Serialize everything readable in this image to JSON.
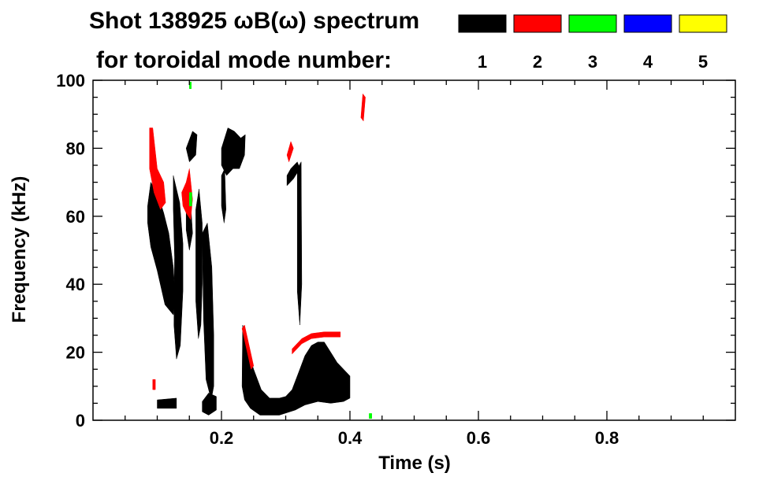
{
  "chart_data": {
    "type": "heatmap",
    "title": "Shot 138925 ωB(ω) spectrum",
    "subtitle": "for toroidal mode number:",
    "xlabel": "Time (s)",
    "ylabel": "Frequency (kHz)",
    "xlim": [
      0.0,
      1.0
    ],
    "ylim": [
      0,
      100
    ],
    "xticks": [
      {
        "value": 0.2,
        "label": "0.2"
      },
      {
        "value": 0.4,
        "label": "0.4"
      },
      {
        "value": 0.6,
        "label": "0.6"
      },
      {
        "value": 0.8,
        "label": "0.8"
      }
    ],
    "yticks": [
      {
        "value": 0,
        "label": "0"
      },
      {
        "value": 20,
        "label": "20"
      },
      {
        "value": 40,
        "label": "40"
      },
      {
        "value": 60,
        "label": "60"
      },
      {
        "value": 80,
        "label": "80"
      },
      {
        "value": 100,
        "label": "100"
      }
    ],
    "legend": [
      {
        "label": "1",
        "color": "#000000"
      },
      {
        "label": "2",
        "color": "#ff0000"
      },
      {
        "label": "3",
        "color": "#00ff00"
      },
      {
        "label": "4",
        "color": "#0000ff"
      },
      {
        "label": "5",
        "color": "#ffff00"
      }
    ],
    "regions": [
      {
        "mode": 1,
        "polygon": [
          [
            0.085,
            63
          ],
          [
            0.09,
            70
          ],
          [
            0.1,
            67
          ],
          [
            0.11,
            61
          ],
          [
            0.118,
            55
          ],
          [
            0.125,
            45
          ],
          [
            0.128,
            36
          ],
          [
            0.125,
            31
          ],
          [
            0.112,
            34
          ],
          [
            0.1,
            44
          ],
          [
            0.09,
            51
          ],
          [
            0.085,
            58
          ]
        ]
      },
      {
        "mode": 1,
        "polygon": [
          [
            0.125,
            72
          ],
          [
            0.135,
            64
          ],
          [
            0.14,
            52
          ],
          [
            0.14,
            38
          ],
          [
            0.136,
            22
          ],
          [
            0.13,
            18
          ],
          [
            0.126,
            28
          ],
          [
            0.127,
            48
          ],
          [
            0.125,
            62
          ]
        ]
      },
      {
        "mode": 1,
        "polygon": [
          [
            0.1,
            6
          ],
          [
            0.13,
            6.5
          ],
          [
            0.13,
            3.5
          ],
          [
            0.1,
            3.5
          ]
        ]
      },
      {
        "mode": 1,
        "polygon": [
          [
            0.145,
            80
          ],
          [
            0.155,
            85
          ],
          [
            0.162,
            84
          ],
          [
            0.16,
            78
          ],
          [
            0.15,
            76
          ]
        ]
      },
      {
        "mode": 1,
        "polygon": [
          [
            0.145,
            62
          ],
          [
            0.152,
            64
          ],
          [
            0.155,
            55
          ],
          [
            0.15,
            50
          ],
          [
            0.145,
            56
          ]
        ]
      },
      {
        "mode": 1,
        "polygon": [
          [
            0.16,
            62
          ],
          [
            0.165,
            68
          ],
          [
            0.17,
            58
          ],
          [
            0.17,
            40
          ],
          [
            0.168,
            28
          ],
          [
            0.164,
            24
          ],
          [
            0.16,
            35
          ]
        ]
      },
      {
        "mode": 1,
        "polygon": [
          [
            0.17,
            55
          ],
          [
            0.178,
            58
          ],
          [
            0.185,
            45
          ],
          [
            0.188,
            25
          ],
          [
            0.188,
            10
          ],
          [
            0.184,
            6
          ],
          [
            0.176,
            12
          ],
          [
            0.172,
            30
          ]
        ]
      },
      {
        "mode": 1,
        "polygon": [
          [
            0.17,
            5.5
          ],
          [
            0.18,
            8
          ],
          [
            0.192,
            7
          ],
          [
            0.192,
            3
          ],
          [
            0.18,
            1.5
          ],
          [
            0.17,
            2.5
          ]
        ]
      },
      {
        "mode": 1,
        "polygon": [
          [
            0.2,
            80
          ],
          [
            0.21,
            86
          ],
          [
            0.22,
            85
          ],
          [
            0.23,
            83
          ],
          [
            0.237,
            84
          ],
          [
            0.236,
            78
          ],
          [
            0.228,
            74
          ],
          [
            0.218,
            74
          ],
          [
            0.208,
            72
          ],
          [
            0.2,
            75
          ]
        ]
      },
      {
        "mode": 1,
        "polygon": [
          [
            0.2,
            72
          ],
          [
            0.205,
            74
          ],
          [
            0.207,
            62
          ],
          [
            0.204,
            58
          ],
          [
            0.2,
            63
          ]
        ]
      },
      {
        "mode": 1,
        "polygon": [
          [
            0.233,
            28
          ],
          [
            0.24,
            21
          ],
          [
            0.25,
            15
          ],
          [
            0.262,
            9
          ],
          [
            0.275,
            6.5
          ],
          [
            0.29,
            6.5
          ],
          [
            0.3,
            7
          ],
          [
            0.31,
            9
          ],
          [
            0.32,
            14
          ],
          [
            0.33,
            19
          ],
          [
            0.34,
            22
          ],
          [
            0.35,
            23
          ],
          [
            0.36,
            23
          ],
          [
            0.37,
            20
          ],
          [
            0.38,
            17
          ],
          [
            0.39,
            15
          ],
          [
            0.4,
            13
          ],
          [
            0.4,
            6.5
          ],
          [
            0.39,
            5.5
          ],
          [
            0.37,
            5
          ],
          [
            0.35,
            5.5
          ],
          [
            0.33,
            4.5
          ],
          [
            0.315,
            3
          ],
          [
            0.29,
            1.5
          ],
          [
            0.26,
            1.5
          ],
          [
            0.245,
            3.5
          ],
          [
            0.236,
            6
          ],
          [
            0.232,
            10
          ]
        ]
      },
      {
        "mode": 1,
        "polygon": [
          [
            0.302,
            72
          ],
          [
            0.308,
            74
          ],
          [
            0.318,
            76
          ],
          [
            0.322,
            74
          ],
          [
            0.312,
            71
          ],
          [
            0.302,
            69
          ]
        ]
      },
      {
        "mode": 1,
        "polygon": [
          [
            0.318,
            74
          ],
          [
            0.324,
            76
          ],
          [
            0.325,
            40
          ],
          [
            0.322,
            28
          ],
          [
            0.318,
            38
          ]
        ]
      },
      {
        "mode": 2,
        "polygon": [
          [
            0.088,
            86
          ],
          [
            0.093,
            86
          ],
          [
            0.1,
            74
          ],
          [
            0.11,
            70
          ],
          [
            0.113,
            64
          ],
          [
            0.105,
            62
          ],
          [
            0.095,
            67
          ],
          [
            0.088,
            74
          ]
        ]
      },
      {
        "mode": 2,
        "polygon": [
          [
            0.138,
            67
          ],
          [
            0.145,
            70
          ],
          [
            0.15,
            74
          ],
          [
            0.155,
            65
          ],
          [
            0.152,
            59
          ],
          [
            0.145,
            61
          ],
          [
            0.14,
            63
          ]
        ]
      },
      {
        "mode": 2,
        "polygon": [
          [
            0.232,
            27
          ],
          [
            0.236,
            28
          ],
          [
            0.25,
            16
          ],
          [
            0.246,
            15
          ]
        ]
      },
      {
        "mode": 2,
        "polygon": [
          [
            0.31,
            21
          ],
          [
            0.325,
            24
          ],
          [
            0.34,
            25.5
          ],
          [
            0.36,
            26
          ],
          [
            0.385,
            26
          ],
          [
            0.385,
            24.5
          ],
          [
            0.36,
            24.5
          ],
          [
            0.34,
            24
          ],
          [
            0.325,
            22.5
          ],
          [
            0.31,
            19.5
          ]
        ]
      },
      {
        "mode": 2,
        "polygon": [
          [
            0.302,
            78
          ],
          [
            0.308,
            82
          ],
          [
            0.312,
            80
          ],
          [
            0.305,
            76
          ]
        ]
      },
      {
        "mode": 2,
        "polygon": [
          [
            0.417,
            89
          ],
          [
            0.42,
            96
          ],
          [
            0.424,
            95
          ],
          [
            0.421,
            88
          ]
        ]
      },
      {
        "mode": 2,
        "polygon": [
          [
            0.093,
            12
          ],
          [
            0.097,
            12
          ],
          [
            0.097,
            9
          ],
          [
            0.093,
            9
          ]
        ]
      },
      {
        "mode": 3,
        "polygon": [
          [
            0.15,
            67
          ],
          [
            0.154,
            67
          ],
          [
            0.154,
            63
          ],
          [
            0.15,
            63
          ]
        ]
      },
      {
        "mode": 3,
        "polygon": [
          [
            0.15,
            99.5
          ],
          [
            0.153,
            99.5
          ],
          [
            0.153,
            97.5
          ],
          [
            0.15,
            97.5
          ]
        ]
      },
      {
        "mode": 3,
        "polygon": [
          [
            0.43,
            2
          ],
          [
            0.434,
            2
          ],
          [
            0.434,
            0.5
          ],
          [
            0.43,
            0.5
          ]
        ]
      }
    ]
  }
}
